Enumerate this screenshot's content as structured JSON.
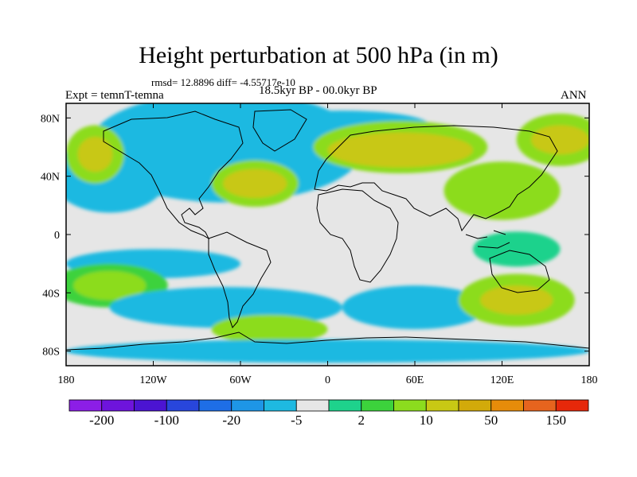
{
  "chart_data": {
    "type": "heatmap",
    "title": "Height perturbation at 500 hPa (in m)",
    "stats": "rmsd= 12.8896 diff= -4.55717e-10",
    "left_label": "Expt = temnT-temna",
    "center_label": "18.5kyr BP - 00.0kyr BP",
    "right_label": "ANN",
    "xlim": [
      -180,
      180
    ],
    "ylim": [
      -90,
      90
    ],
    "x_ticks": [
      {
        "value": -180,
        "label": "180"
      },
      {
        "value": -120,
        "label": "120W"
      },
      {
        "value": -60,
        "label": "60W"
      },
      {
        "value": 0,
        "label": "0"
      },
      {
        "value": 60,
        "label": "60E"
      },
      {
        "value": 120,
        "label": "120E"
      },
      {
        "value": 180,
        "label": "180"
      }
    ],
    "y_ticks": [
      {
        "value": 80,
        "label": "80N"
      },
      {
        "value": 40,
        "label": "40N"
      },
      {
        "value": 0,
        "label": "0"
      },
      {
        "value": -40,
        "label": "40S"
      },
      {
        "value": -80,
        "label": "80S"
      }
    ],
    "colorbar": {
      "levels": [
        -200,
        -150,
        -100,
        -50,
        -20,
        -10,
        -5,
        -2,
        2,
        5,
        10,
        20,
        50,
        100,
        150,
        200
      ],
      "labels": [
        {
          "after_box": 1,
          "label": "-200"
        },
        {
          "after_box": 3,
          "label": "-100"
        },
        {
          "after_box": 5,
          "label": "-20"
        },
        {
          "after_box": 7,
          "label": "-5"
        },
        {
          "after_box": 9,
          "label": "2"
        },
        {
          "after_box": 11,
          "label": "10"
        },
        {
          "after_box": 13,
          "label": "50"
        },
        {
          "after_box": 15,
          "label": "150"
        }
      ],
      "colors": [
        "#8C1EE6",
        "#6E14DC",
        "#4B14D2",
        "#2846DC",
        "#1E6EE6",
        "#1E96E6",
        "#1EB9E1",
        "#E6E6E6",
        "#1ED28C",
        "#3CD23C",
        "#8CDC1E",
        "#C8C814",
        "#D2AA0A",
        "#E68C0A",
        "#E6641E",
        "#E6280A"
      ]
    },
    "background_level_index": 7,
    "field_regions": [
      {
        "lon": -92,
        "lat": 60,
        "rlon": 30,
        "rlat": 16,
        "level": 3
      },
      {
        "lon": -100,
        "lat": 62,
        "rlon": 45,
        "rlat": 24,
        "level": 5
      },
      {
        "lon": -70,
        "lat": 60,
        "rlon": 95,
        "rlat": 38,
        "level": 6
      },
      {
        "lon": -150,
        "lat": 40,
        "rlon": 40,
        "rlat": 25,
        "level": 6
      },
      {
        "lon": -160,
        "lat": 55,
        "rlon": 20,
        "rlat": 20,
        "level": 10
      },
      {
        "lon": -160,
        "lat": 55,
        "rlon": 12,
        "rlat": 12,
        "level": 11
      },
      {
        "lon": -50,
        "lat": 35,
        "rlon": 30,
        "rlat": 16,
        "level": 10
      },
      {
        "lon": -50,
        "lat": 35,
        "rlon": 22,
        "rlat": 10,
        "level": 11
      },
      {
        "lon": 10,
        "lat": 75,
        "rlon": 60,
        "rlat": 10,
        "level": 6
      },
      {
        "lon": 50,
        "lat": 60,
        "rlon": 60,
        "rlat": 18,
        "level": 10
      },
      {
        "lon": 50,
        "lat": 58,
        "rlon": 50,
        "rlat": 12,
        "level": 11
      },
      {
        "lon": 160,
        "lat": 65,
        "rlon": 30,
        "rlat": 18,
        "level": 10
      },
      {
        "lon": 160,
        "lat": 65,
        "rlon": 20,
        "rlat": 10,
        "level": 11
      },
      {
        "lon": 120,
        "lat": 30,
        "rlon": 40,
        "rlat": 20,
        "level": 10
      },
      {
        "lon": 130,
        "lat": -10,
        "rlon": 30,
        "rlat": 12,
        "level": 8
      },
      {
        "lon": -120,
        "lat": -20,
        "rlon": 60,
        "rlat": 10,
        "level": 6
      },
      {
        "lon": -150,
        "lat": -35,
        "rlon": 40,
        "rlat": 15,
        "level": 9
      },
      {
        "lon": -150,
        "lat": -35,
        "rlon": 25,
        "rlat": 10,
        "level": 10
      },
      {
        "lon": -70,
        "lat": -50,
        "rlon": 80,
        "rlat": 14,
        "level": 6
      },
      {
        "lon": -40,
        "lat": -65,
        "rlon": 40,
        "rlat": 10,
        "level": 10
      },
      {
        "lon": 60,
        "lat": -50,
        "rlon": 50,
        "rlat": 15,
        "level": 6
      },
      {
        "lon": 130,
        "lat": -45,
        "rlon": 40,
        "rlat": 18,
        "level": 10
      },
      {
        "lon": 130,
        "lat": -45,
        "rlon": 25,
        "rlat": 10,
        "level": 11
      },
      {
        "lon": 0,
        "lat": -80,
        "rlon": 180,
        "rlat": 8,
        "level": 6
      }
    ]
  }
}
